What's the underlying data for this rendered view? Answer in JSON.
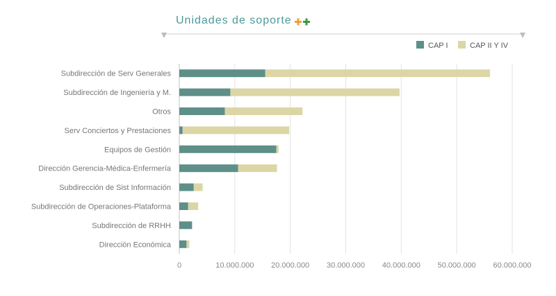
{
  "chart_data": {
    "type": "bar",
    "orientation": "horizontal",
    "stacked": true,
    "title": "Unidades de soporte",
    "title_icon": "plus-plus-icon",
    "categories": [
      "Subdirección de Serv Generales",
      "Subdirección de Ingeniería y M.",
      "Otros",
      "Serv Conciertos y Prestaciones",
      "Equipos de Gestión",
      "Dirección Gerencia-Médica-Enfermería",
      "Subdirección de Sist Información",
      "Subdirección de Operaciones-Plataforma",
      "Subdirección de RRHH",
      "Dirección Económica"
    ],
    "series": [
      {
        "name": "CAP I",
        "color": "#5e8f89",
        "values": [
          15500000,
          9200000,
          8200000,
          600000,
          17500000,
          10600000,
          2600000,
          1600000,
          2300000,
          1300000
        ]
      },
      {
        "name": "CAP II Y IV",
        "color": "#dcd6a6",
        "values": [
          40500000,
          30500000,
          14000000,
          19200000,
          400000,
          7000000,
          1600000,
          1800000,
          0,
          500000
        ]
      }
    ],
    "xlim": [
      0,
      60000000
    ],
    "xticks": [
      0,
      10000000,
      20000000,
      30000000,
      40000000,
      50000000,
      60000000
    ],
    "xtick_labels": [
      "0",
      "10.000.000",
      "20.000.000",
      "30.000.000",
      "40.000.000",
      "50.000.000",
      "60.000.000"
    ],
    "legend_position": "top-right",
    "grid": "vertical",
    "colors": {
      "title": "#4a9a9a",
      "plus_orange": "#f0a030",
      "plus_green": "#3a9a3a",
      "grid": "#e2e2e2",
      "axis": "#c0c0c0"
    }
  }
}
